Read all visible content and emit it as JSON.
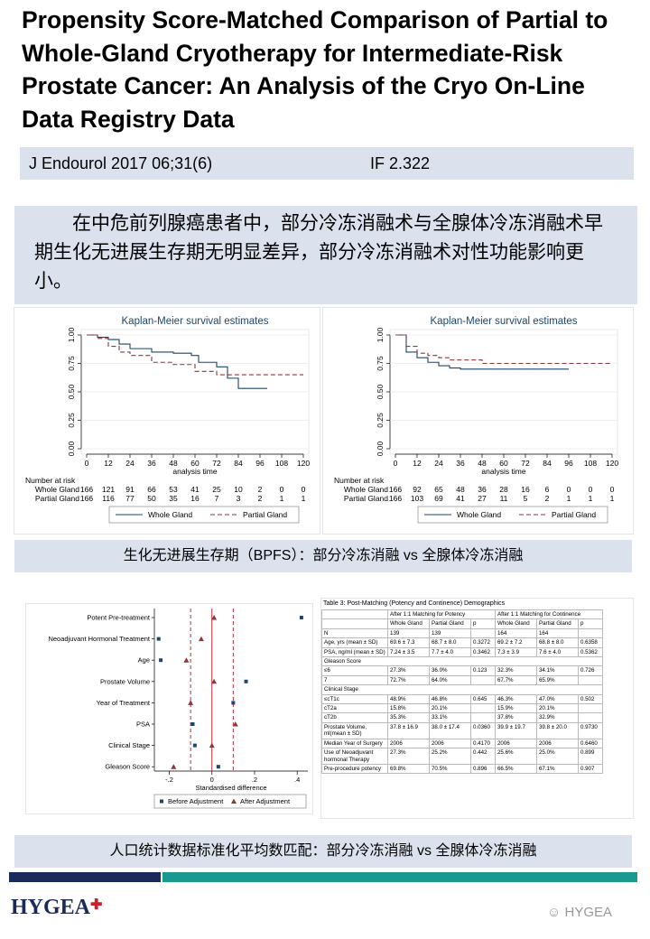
{
  "header": {
    "title": "Propensity Score-Matched Comparison of Partial to Whole-Gland Cryotherapy for Intermediate-Risk Prostate Cancer: An Analysis of the Cryo On-Line Data Registry Data",
    "citation": "J Endourol 2017 06;31(6)",
    "impact_factor": "IF 2.322"
  },
  "summary": "在中危前列腺癌患者中，部分冷冻消融术与全腺体冷冻消融术早期生化无进展生存期无明显差异，部分冷冻消融术对性功能影响更小。",
  "km_plots": [
    {
      "type": "line",
      "title": "Kaplan-Meier survival estimates",
      "x_label": "analysis time",
      "xlim": [
        0,
        120
      ],
      "xticks": [
        0,
        12,
        24,
        36,
        48,
        60,
        72,
        84,
        96,
        108,
        120
      ],
      "ylim": [
        0,
        1
      ],
      "yticks": [
        {
          "value": 0,
          "label": "0.00"
        },
        {
          "value": 0.25,
          "label": "0.25"
        },
        {
          "value": 0.5,
          "label": "0.50"
        },
        {
          "value": 0.75,
          "label": "0.75"
        },
        {
          "value": 1,
          "label": "1.00"
        }
      ],
      "risk_table": {
        "title": "Number at risk",
        "rows": [
          {
            "name": "Whole Gland",
            "values": [
              166,
              121,
              91,
              66,
              53,
              41,
              25,
              10,
              2,
              0,
              0
            ]
          },
          {
            "name": "Partial Gland",
            "values": [
              166,
              116,
              77,
              50,
              35,
              16,
              7,
              3,
              2,
              1,
              1
            ]
          }
        ]
      },
      "series": [
        {
          "name": "Whole Gland",
          "color": "#1a476f",
          "dashed": false,
          "x": [
            0,
            6,
            12,
            18,
            24,
            36,
            48,
            58,
            62,
            72,
            78,
            84,
            100
          ],
          "values": [
            1,
            0.98,
            0.96,
            0.92,
            0.88,
            0.85,
            0.84,
            0.82,
            0.76,
            0.72,
            0.62,
            0.53,
            0.53
          ]
        },
        {
          "name": "Partial Gland",
          "color": "#90353b",
          "dashed": true,
          "x": [
            0,
            6,
            12,
            18,
            24,
            36,
            48,
            60,
            72,
            120
          ],
          "values": [
            1,
            0.97,
            0.9,
            0.85,
            0.82,
            0.76,
            0.74,
            0.68,
            0.65,
            0.65
          ]
        }
      ]
    },
    {
      "type": "line",
      "title": "Kaplan-Meier survival estimates",
      "x_label": "analysis time",
      "xlim": [
        0,
        120
      ],
      "xticks": [
        0,
        12,
        24,
        36,
        48,
        60,
        72,
        84,
        96,
        108,
        120
      ],
      "ylim": [
        0,
        1
      ],
      "yticks": [
        {
          "value": 0,
          "label": "0.00"
        },
        {
          "value": 0.25,
          "label": "0.25"
        },
        {
          "value": 0.5,
          "label": "0.50"
        },
        {
          "value": 0.75,
          "label": "0.75"
        },
        {
          "value": 1,
          "label": "1.00"
        }
      ],
      "risk_table": {
        "title": "Number at risk",
        "rows": [
          {
            "name": "Whole Gland",
            "values": [
              166,
              92,
              65,
              48,
              36,
              28,
              16,
              6,
              0,
              0,
              0
            ]
          },
          {
            "name": "Partial Gland",
            "values": [
              166,
              103,
              69,
              41,
              27,
              11,
              5,
              2,
              1,
              1,
              1
            ]
          }
        ]
      },
      "series": [
        {
          "name": "Whole Gland",
          "color": "#1a476f",
          "dashed": false,
          "x": [
            0,
            6,
            12,
            18,
            24,
            30,
            36,
            96
          ],
          "values": [
            1,
            0.85,
            0.8,
            0.76,
            0.73,
            0.71,
            0.7,
            0.7
          ]
        },
        {
          "name": "Partial Gland",
          "color": "#90353b",
          "dashed": true,
          "x": [
            0,
            6,
            12,
            18,
            24,
            30,
            48,
            120
          ],
          "values": [
            1,
            0.9,
            0.84,
            0.82,
            0.8,
            0.78,
            0.75,
            0.75
          ]
        }
      ]
    }
  ],
  "caption_1": "生化无进展生存期（BPFS）：部分冷冻消融 vs 全腺体冷冻消融",
  "love_plot": {
    "type": "dot",
    "x_label": "Standardised difference",
    "categories": [
      "Potent Pre-treatment",
      "Neoadjuvant Hormonal Treatment",
      "Age",
      "Prostate Volume",
      "Year of Treatment",
      "PSA",
      "Clinical Stage",
      "Gleason Score"
    ],
    "xlim": [
      -0.27,
      0.45
    ],
    "xticks": [
      {
        "value": -0.2,
        "label": "-.2"
      },
      0,
      {
        "value": 0.2,
        "label": ".2"
      },
      {
        "value": 0.4,
        "label": ".4"
      }
    ],
    "reference_lines": [
      -0.1,
      0,
      0.1
    ],
    "series": [
      {
        "name": "Before Adjustment",
        "color": "#1a476f",
        "marker": "square",
        "values": [
          0.42,
          -0.25,
          -0.24,
          0.16,
          0.1,
          -0.09,
          -0.08,
          0.03
        ]
      },
      {
        "name": "After Adjustment",
        "color": "#90353b",
        "marker": "triangle",
        "values": [
          0.01,
          -0.05,
          -0.12,
          0.01,
          -0.1,
          0.11,
          0,
          -0.18
        ]
      }
    ]
  },
  "table": {
    "title": "Table 3: Post-Matching (Potency and Continence) Demographics",
    "groups": [
      "After 1:1 Matching for Potency",
      "After 1:1 Matching for Continence"
    ],
    "columns": [
      "Whole Gland",
      "Partial Gland",
      "p",
      "Whole Gland",
      "Partial Gland",
      "p"
    ],
    "rows": [
      [
        "N",
        "139",
        "139",
        null,
        "164",
        "164",
        null
      ],
      [
        "Age, yrs (mean ± SD)",
        "69.6 ± 7.3",
        "68.7 ± 8.0",
        "0.3272",
        "69.2 ± 7.2",
        "68.8 ± 8.0",
        "0.6358"
      ],
      [
        "PSA, ng/ml (mean ± SD)",
        "7.24 ± 3.5",
        "7.7 ± 4.0",
        "0.3462",
        "7.3 ± 3.9",
        "7.6 ± 4.0",
        "0.5362"
      ],
      [
        "Gleason Score"
      ],
      [
        "≤6",
        "27.3%",
        "36.0%",
        "0.123",
        "32.3%",
        "34.1%",
        "0.726"
      ],
      [
        "7",
        "72.7%",
        "64.0%",
        null,
        "67.7%",
        "65.9%",
        null
      ],
      [
        "Clinical Stage"
      ],
      [
        "≤cT1c",
        "48.9%",
        "46.8%",
        "0.645",
        "46.3%",
        "47.0%",
        "0.502"
      ],
      [
        "cT2a",
        "15.8%",
        "20.1%",
        null,
        "15.9%",
        "20.1%",
        null
      ],
      [
        "cT2b",
        "35.3%",
        "33.1%",
        null,
        "37.8%",
        "32.9%",
        null
      ],
      [
        "Prostate Volume, ml(mean ± SD)",
        "37.8 ± 16.9",
        "38.0 ± 17.4",
        "0.0360",
        "39.9 ± 19.7",
        "39.8 ± 20.0",
        "0.9730"
      ],
      [
        "Median Year of Surgery",
        "2006",
        "2006",
        "0.4170",
        "2006",
        "2006",
        "0.6460"
      ],
      [
        "Use of Neoadjuvant hormonal Therapy",
        "27.3%",
        "25.2%",
        "0.442",
        "25.6%",
        "25.0%",
        "0.899"
      ],
      [
        "Pre-procedure potency",
        "69.8%",
        "70.5%",
        "0.896",
        "66.5%",
        "67.1%",
        "0.907"
      ]
    ]
  },
  "caption_2": "人口统计数据标准化平均数匹配：部分冷冻消融 vs 全腺体冷冻消融",
  "footer": {
    "logo": "HYGEA",
    "watermark": "HYGEA"
  }
}
